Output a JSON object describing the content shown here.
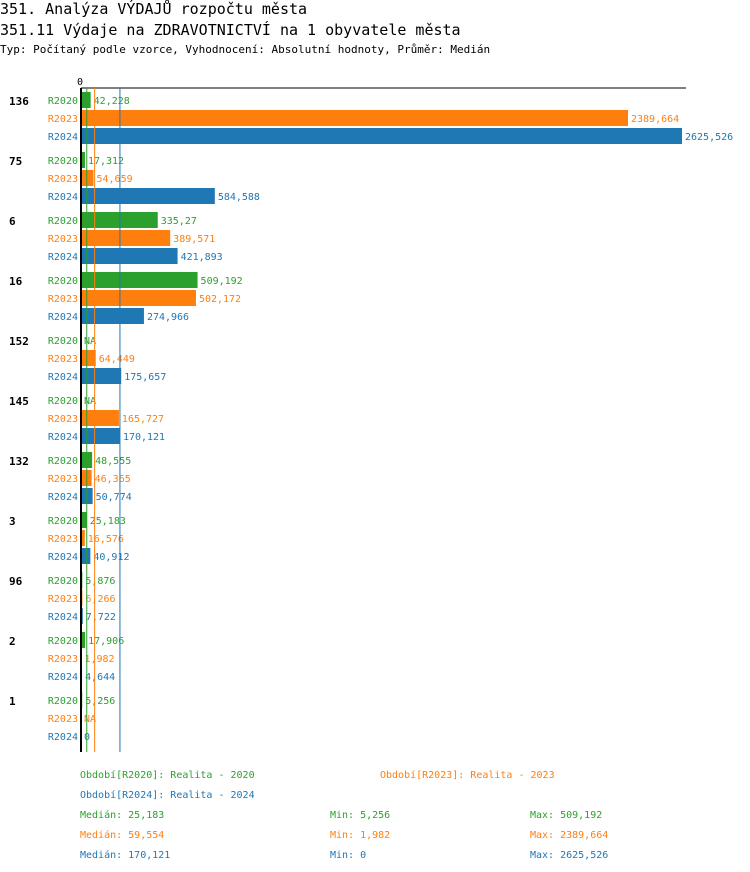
{
  "header": {
    "title": "351. Analýza VÝDAJŮ rozpočtu města",
    "subtitle": "351.11 Výdaje na ZDRAVOTNICTVÍ na 1 obyvatele města",
    "type_line": "Typ: Počítaný podle vzorce, Vyhodnocení: Absolutní hodnoty, Průměr: Medián"
  },
  "colors": {
    "R2020": "#2ca02c",
    "R2023": "#ff7f0e",
    "R2024": "#1f77b4"
  },
  "chart_data": {
    "type": "bar",
    "orientation": "horizontal",
    "title": "351.11 Výdaje na ZDRAVOTNICTVÍ na 1 obyvatele města",
    "xlim": [
      0,
      2625.526
    ],
    "axis_zero_label": "0",
    "series_names": [
      "R2020",
      "R2023",
      "R2024"
    ],
    "groups": [
      {
        "id": "136",
        "values": [
          42.228,
          2389.664,
          2625.526
        ],
        "labels": [
          "42,228",
          "2389,664",
          "2625,526"
        ]
      },
      {
        "id": "75",
        "values": [
          17.312,
          54.659,
          584.588
        ],
        "labels": [
          "17,312",
          "54,659",
          "584,588"
        ]
      },
      {
        "id": "6",
        "values": [
          335.27,
          389.571,
          421.893
        ],
        "labels": [
          "335,27",
          "389,571",
          "421,893"
        ]
      },
      {
        "id": "16",
        "values": [
          509.192,
          502.172,
          274.966
        ],
        "labels": [
          "509,192",
          "502,172",
          "274,966"
        ]
      },
      {
        "id": "152",
        "values": [
          null,
          64.449,
          175.657
        ],
        "labels": [
          "NA",
          "64,449",
          "175,657"
        ]
      },
      {
        "id": "145",
        "values": [
          null,
          165.727,
          170.121
        ],
        "labels": [
          "NA",
          "165,727",
          "170,121"
        ]
      },
      {
        "id": "132",
        "values": [
          48.555,
          46.365,
          50.774
        ],
        "labels": [
          "48,555",
          "46,365",
          "50,774"
        ]
      },
      {
        "id": "3",
        "values": [
          25.183,
          16.576,
          40.912
        ],
        "labels": [
          "25,183",
          "16,576",
          "40,912"
        ]
      },
      {
        "id": "96",
        "values": [
          5.876,
          6.266,
          7.722
        ],
        "labels": [
          "5,876",
          "6,266",
          "7,722"
        ]
      },
      {
        "id": "2",
        "values": [
          17.906,
          1.982,
          4.644
        ],
        "labels": [
          "17,906",
          "1,982",
          "4,644"
        ]
      },
      {
        "id": "1",
        "values": [
          5.256,
          null,
          0
        ],
        "labels": [
          "5,256",
          "NA",
          "0"
        ]
      }
    ],
    "medians": [
      25.183,
      59.554,
      170.121
    ],
    "legend": [
      "Období[R2020]: Realita - 2020",
      "Období[R2023]: Realita - 2023",
      "Období[R2024]: Realita - 2024"
    ],
    "stats": [
      {
        "median": "Medián: 25,183",
        "min": "Min: 5,256",
        "max": "Max: 509,192"
      },
      {
        "median": "Medián: 59,554",
        "min": "Min: 1,982",
        "max": "Max: 2389,664"
      },
      {
        "median": "Medián: 170,121",
        "min": "Min: 0",
        "max": "Max: 2625,526"
      }
    ]
  }
}
